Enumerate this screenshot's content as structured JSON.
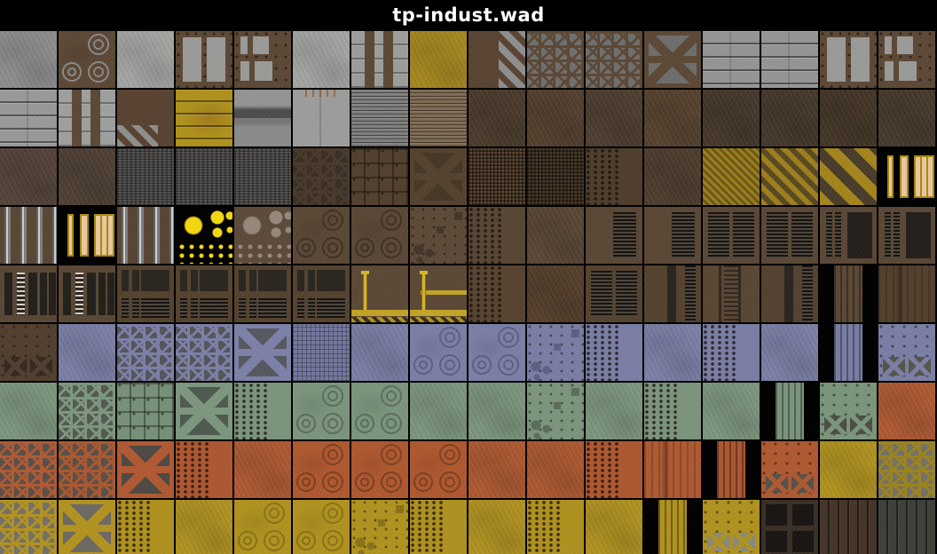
{
  "window": {
    "title": "tp-indust.wad",
    "background": "#000000",
    "title_color": "#ffffff"
  },
  "grid": {
    "cols": 16,
    "rows": 9,
    "tile_size": 64,
    "gap": 2
  },
  "palette": {
    "gray_plate": "#8f8f8f",
    "concrete": "#a7a7a5",
    "rust_brown": "#5d4936",
    "dark_brown": "#46382b",
    "gold": "#a8891f",
    "hazard_yellow": "#a5851c",
    "light_tube_cream": "#eac9a2",
    "lit_dot_yellow": "#f5d912",
    "tech_blue": "#7d81a8",
    "tech_green": "#7e987f",
    "tech_orange": "#b15a33",
    "tech_yellow": "#b39420"
  },
  "tiles": [
    [
      [
        "flat",
        "#8f8f8f"
      ],
      [
        "rings",
        "#5d4936",
        "#8a8a88"
      ],
      [
        "flat",
        "#a7a7a5"
      ],
      [
        "pan2",
        "#5d4936",
        "#9b9b99"
      ],
      [
        "panmix",
        "#5d4936",
        "#9b9b99"
      ],
      [
        "flat",
        "#a7a7a5"
      ],
      [
        "vstrap",
        "#5d4936",
        "#9e9e9c"
      ],
      [
        "flat",
        "#a8891f"
      ],
      [
        "diagR",
        "#5a4533",
        "#8f8f8f"
      ],
      [
        "lat",
        "#5d4936",
        "#70706e"
      ],
      [
        "lat",
        "#5d4936",
        "#70706e"
      ],
      [
        "octo",
        "#5d4936",
        "#6e6e6c"
      ],
      [
        "hplate",
        "#969696"
      ],
      [
        "hplate",
        "#969696"
      ],
      [
        "pan2",
        "#5d4936",
        "#9b9b99"
      ],
      [
        "panmix",
        "#5d4936",
        "#9b9b99"
      ]
    ],
    [
      [
        "hplate",
        "#9a9a9a"
      ],
      [
        "vstrap",
        "#5d4936",
        "#a0a0a0"
      ],
      [
        "diagB",
        "#5a4332",
        "#8f8f8d"
      ],
      [
        "plankh",
        "#b0921c"
      ],
      [
        "grunge",
        "#8c8c8a"
      ],
      [
        "crust",
        "#9e9e9c"
      ],
      [
        "corr",
        "#7e7e7c"
      ],
      [
        "corr",
        "#7d6a52"
      ],
      [
        "flat",
        "#4b3b2c"
      ],
      [
        "flat",
        "#553f2e"
      ],
      [
        "flat",
        "#4e3e30"
      ],
      [
        "flat",
        "#57422f"
      ],
      [
        "flat",
        "#46382b"
      ],
      [
        "flat",
        "#46382b"
      ],
      [
        "flat",
        "#443627"
      ],
      [
        "flat",
        "#473a2c"
      ]
    ],
    [
      [
        "flat",
        "#54433a"
      ],
      [
        "flat",
        "#4f4034"
      ],
      [
        "weave",
        "#555351"
      ],
      [
        "weave",
        "#555351"
      ],
      [
        "weave",
        "#565452"
      ],
      [
        "lat",
        "#4a3a2c",
        "#3a2f24"
      ],
      [
        "gridp",
        "#53412f"
      ],
      [
        "octo",
        "#55432f",
        "#463827"
      ],
      [
        "mesh",
        "#5c4730"
      ],
      [
        "mesh",
        "#4c3b28"
      ],
      [
        "riv",
        "#503e2d"
      ],
      [
        "flat",
        "#4e3d2e"
      ],
      [
        "hazf",
        "#9b7e1c",
        "#6a5718"
      ],
      [
        "hazm",
        "#a07f1d",
        "#5a4a22"
      ],
      [
        "hazw",
        "#a5851c",
        "#4a3d2a"
      ],
      [
        "tube",
        "#000000",
        "#eac9a2"
      ]
    ],
    [
      [
        "pipe",
        "#5a4734"
      ],
      [
        "tube",
        "#000000",
        "#eec9a0"
      ],
      [
        "pipe",
        "#584634"
      ],
      [
        "dots",
        "#000000",
        "#f5d912"
      ],
      [
        "dots",
        "#5d4b3b",
        "#97897b"
      ],
      [
        "rings",
        "#5b4836",
        "#3f3223"
      ],
      [
        "rings",
        "#5b4836",
        "#3f3223"
      ],
      [
        "sqdet",
        "#5d4a38",
        "#42372a"
      ],
      [
        "riv",
        "#584635"
      ],
      [
        "flat",
        "#5a4736"
      ],
      [
        "ventR",
        "#5b4836"
      ],
      [
        "ventR",
        "#5b4836"
      ],
      [
        "vent2",
        "#5b4836"
      ],
      [
        "vent2",
        "#5b4836"
      ],
      [
        "ventT",
        "#5b4836"
      ],
      [
        "ventT",
        "#5b4836"
      ]
    ],
    [
      [
        "slot",
        "#5a4836"
      ],
      [
        "slot",
        "#5a4836"
      ],
      [
        "pvent",
        "#55432f"
      ],
      [
        "pvent",
        "#55432f"
      ],
      [
        "pvent",
        "#55432f"
      ],
      [
        "pvent",
        "#55432f"
      ],
      [
        "pipeY",
        "#5c4936"
      ],
      [
        "pipeYT",
        "#5c4936"
      ],
      [
        "riv",
        "#584431"
      ],
      [
        "flat",
        "#563f2c"
      ],
      [
        "vent2",
        "#55432f"
      ],
      [
        "ventC",
        "#55432f"
      ],
      [
        "ladder",
        "#5a4734"
      ],
      [
        "ventC",
        "#544231"
      ],
      [
        "nar",
        "#5c4836"
      ],
      [
        "streak",
        "#54412e"
      ]
    ],
    [
      [
        "xbb",
        "#52402f",
        "#332a20"
      ],
      [
        "flat",
        "#7d81a8"
      ],
      [
        "lat",
        "#7d81a8",
        "#55555c"
      ],
      [
        "lat",
        "#7d81a8",
        "#55555c"
      ],
      [
        "octo",
        "#7e82a9",
        "#585860"
      ],
      [
        "fgrid",
        "#74789e"
      ],
      [
        "flat",
        "#7c80a7"
      ],
      [
        "rings",
        "#7c80a7",
        "#5d6185"
      ],
      [
        "rings",
        "#7c80a7",
        "#5d6185"
      ],
      [
        "sqdet",
        "#7b7fa6",
        "#5d6185"
      ],
      [
        "riv",
        "#7b7fa6"
      ],
      [
        "flat",
        "#7d81a8"
      ],
      [
        "riv",
        "#7b7fa6"
      ],
      [
        "flat",
        "#7d81a8"
      ],
      [
        "nar",
        "#7b7fa6"
      ],
      [
        "xbb",
        "#7c80a7",
        "#565648"
      ]
    ],
    [
      [
        "flat",
        "#7e987f"
      ],
      [
        "lat",
        "#7e987f",
        "#535b52"
      ],
      [
        "gridp",
        "#78927a"
      ],
      [
        "octo",
        "#7e987f",
        "#4f5a50"
      ],
      [
        "riv",
        "#7c967d"
      ],
      [
        "rings",
        "#7c967d",
        "#5c6e5d"
      ],
      [
        "rings",
        "#7c967d",
        "#5c6e5d"
      ],
      [
        "flat",
        "#7e987f"
      ],
      [
        "flat",
        "#7d977e"
      ],
      [
        "sqdet",
        "#7c967d",
        "#5c6e5d"
      ],
      [
        "flat",
        "#7e987f"
      ],
      [
        "riv",
        "#7c967d"
      ],
      [
        "flat",
        "#7e987f"
      ],
      [
        "nar",
        "#7c967d"
      ],
      [
        "xbb",
        "#7c967d",
        "#4e4e46"
      ],
      [
        "flat",
        "#b15a33"
      ]
    ],
    [
      [
        "lat",
        "#b15a33",
        "#58514b"
      ],
      [
        "lat",
        "#ad5830",
        "#58514b"
      ],
      [
        "octo",
        "#b15a33",
        "#4f4a44"
      ],
      [
        "riv",
        "#ae5832"
      ],
      [
        "flat",
        "#b15a33"
      ],
      [
        "rings",
        "#b05930",
        "#7e4124"
      ],
      [
        "rings",
        "#b05930",
        "#7e4124"
      ],
      [
        "rings",
        "#b05930",
        "#7e4124"
      ],
      [
        "flat",
        "#b05a32"
      ],
      [
        "flat",
        "#af5931"
      ],
      [
        "riv",
        "#ae5832"
      ],
      [
        "streak",
        "#b05a32"
      ],
      [
        "nar",
        "#ad5730"
      ],
      [
        "xbb",
        "#b05a32",
        "#56524c"
      ],
      [
        "flat",
        "#b3941f"
      ],
      [
        "lat",
        "#9c851e",
        "#75716b"
      ]
    ],
    [
      [
        "lat",
        "#b39420",
        "#75716b"
      ],
      [
        "octo",
        "#b39420",
        "#6e6a64"
      ],
      [
        "riv",
        "#b09220"
      ],
      [
        "flat",
        "#b39420"
      ],
      [
        "rings",
        "#b29320",
        "#8a7418"
      ],
      [
        "rings",
        "#b29320",
        "#8a7418"
      ],
      [
        "sqdet",
        "#b29320",
        "#8a7418"
      ],
      [
        "riv",
        "#b09220"
      ],
      [
        "flat",
        "#b39420"
      ],
      [
        "riv",
        "#b09220"
      ],
      [
        "flat",
        "#b39420"
      ],
      [
        "nar",
        "#b19320"
      ],
      [
        "xbb",
        "#b19320",
        "#8a8a80"
      ],
      [
        "sq4",
        "#3a2f26"
      ],
      [
        "plankv",
        "#463528"
      ],
      [
        "plankv",
        "#3e403a"
      ]
    ]
  ]
}
